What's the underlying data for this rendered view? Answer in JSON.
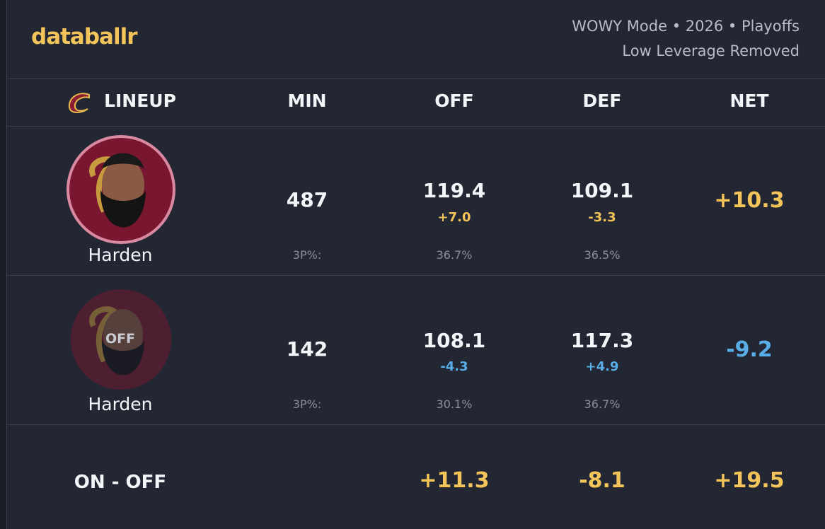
{
  "header": {
    "logo": "databallr",
    "subtitle_lines": [
      "WOWY Mode • 2026 • Playoffs",
      "Low Leverage Removed"
    ]
  },
  "table": {
    "columns": [
      "LINEUP",
      "MIN",
      "OFF",
      "DEF",
      "NET"
    ],
    "rows": [
      {
        "player": "Harden",
        "min": "487",
        "off": "119.4",
        "off_diff": "+7.0",
        "def": "109.1",
        "def_diff": "-3.3",
        "net": "+10.3",
        "shooting_label": "3P%:",
        "off_3p": "36.7%",
        "def_3p": "36.5%"
      },
      {
        "badge": "OFF",
        "player": "Harden",
        "min": "142",
        "off": "108.1",
        "off_diff": "-4.3",
        "def": "117.3",
        "def_diff": "+4.9",
        "net": "-9.2",
        "shooting_label": "3P%:",
        "off_3p": "30.1%",
        "def_3p": "36.7%"
      }
    ],
    "summary": {
      "label": "ON - OFF",
      "off": "+11.3",
      "def": "-8.1",
      "net": "+19.5"
    }
  }
}
